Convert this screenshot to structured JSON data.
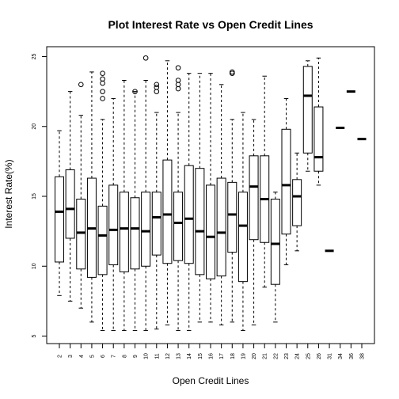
{
  "chart_data": {
    "type": "boxplot",
    "title": "Plot Interest Rate vs Open Credit Lines",
    "xlabel": "Open Credit Lines",
    "ylabel": "Interest Rate(%)",
    "ylim": [
      5,
      25
    ],
    "yticks": [
      5,
      10,
      15,
      20,
      25
    ],
    "grid": false,
    "legend": "none",
    "categories": [
      "2",
      "3",
      "4",
      "5",
      "6",
      "7",
      "8",
      "9",
      "10",
      "11",
      "12",
      "13",
      "14",
      "15",
      "16",
      "17",
      "18",
      "19",
      "20",
      "21",
      "22",
      "23",
      "24",
      "25",
      "26",
      "31",
      "34",
      "36",
      "38"
    ],
    "boxes": [
      {
        "category": "2",
        "whisker_low": 7.9,
        "q1": 10.3,
        "median": 13.9,
        "q3": 16.4,
        "whisker_high": 19.7,
        "outliers": []
      },
      {
        "category": "3",
        "whisker_low": 7.5,
        "q1": 12.0,
        "median": 14.1,
        "q3": 16.9,
        "whisker_high": 22.5,
        "outliers": []
      },
      {
        "category": "4",
        "whisker_low": 7.0,
        "q1": 9.8,
        "median": 12.4,
        "q3": 14.8,
        "whisker_high": 20.8,
        "outliers": [
          23.0
        ]
      },
      {
        "category": "5",
        "whisker_low": 6.0,
        "q1": 9.2,
        "median": 12.7,
        "q3": 16.3,
        "whisker_high": 23.9,
        "outliers": []
      },
      {
        "category": "6",
        "whisker_low": 5.4,
        "q1": 9.4,
        "median": 12.2,
        "q3": 14.3,
        "whisker_high": 20.5,
        "outliers": [
          22.0,
          22.5,
          23.1,
          23.4,
          23.8
        ]
      },
      {
        "category": "7",
        "whisker_low": 5.4,
        "q1": 10.1,
        "median": 12.6,
        "q3": 15.8,
        "whisker_high": 22.0,
        "outliers": []
      },
      {
        "category": "8",
        "whisker_low": 5.4,
        "q1": 9.6,
        "median": 12.7,
        "q3": 15.3,
        "whisker_high": 23.3,
        "outliers": []
      },
      {
        "category": "9",
        "whisker_low": 5.4,
        "q1": 9.8,
        "median": 12.7,
        "q3": 14.9,
        "whisker_high": 22.5,
        "outliers": [
          22.5
        ]
      },
      {
        "category": "10",
        "whisker_low": 5.4,
        "q1": 10.0,
        "median": 12.5,
        "q3": 15.3,
        "whisker_high": 23.3,
        "outliers": [
          24.9
        ]
      },
      {
        "category": "11",
        "whisker_low": 5.5,
        "q1": 10.8,
        "median": 13.5,
        "q3": 15.3,
        "whisker_high": 21.0,
        "outliers": [
          22.5,
          22.8,
          23.0
        ]
      },
      {
        "category": "12",
        "whisker_low": 5.8,
        "q1": 10.2,
        "median": 13.7,
        "q3": 17.6,
        "whisker_high": 24.7,
        "outliers": []
      },
      {
        "category": "13",
        "whisker_low": 5.4,
        "q1": 10.4,
        "median": 13.1,
        "q3": 15.3,
        "whisker_high": 21.0,
        "outliers": [
          22.7,
          23.0,
          23.3,
          24.2
        ]
      },
      {
        "category": "14",
        "whisker_low": 5.4,
        "q1": 10.2,
        "median": 13.4,
        "q3": 17.2,
        "whisker_high": 23.8,
        "outliers": []
      },
      {
        "category": "15",
        "whisker_low": 6.0,
        "q1": 9.4,
        "median": 12.5,
        "q3": 17.0,
        "whisker_high": 23.8,
        "outliers": []
      },
      {
        "category": "16",
        "whisker_low": 6.0,
        "q1": 9.1,
        "median": 12.1,
        "q3": 15.8,
        "whisker_high": 23.8,
        "outliers": []
      },
      {
        "category": "17",
        "whisker_low": 5.8,
        "q1": 9.3,
        "median": 12.4,
        "q3": 16.3,
        "whisker_high": 23.0,
        "outliers": []
      },
      {
        "category": "18",
        "whisker_low": 6.0,
        "q1": 11.0,
        "median": 13.7,
        "q3": 16.0,
        "whisker_high": 20.5,
        "outliers": [
          23.8,
          23.9
        ]
      },
      {
        "category": "19",
        "whisker_low": 5.4,
        "q1": 8.9,
        "median": 12.9,
        "q3": 15.3,
        "whisker_high": 21.0,
        "outliers": []
      },
      {
        "category": "20",
        "whisker_low": 5.8,
        "q1": 11.9,
        "median": 15.7,
        "q3": 17.9,
        "whisker_high": 20.5,
        "outliers": []
      },
      {
        "category": "21",
        "whisker_low": 8.5,
        "q1": 11.7,
        "median": 14.8,
        "q3": 17.9,
        "whisker_high": 23.6,
        "outliers": []
      },
      {
        "category": "22",
        "whisker_low": 6.0,
        "q1": 8.7,
        "median": 11.6,
        "q3": 14.8,
        "whisker_high": 15.3,
        "outliers": []
      },
      {
        "category": "23",
        "whisker_low": 10.1,
        "q1": 12.3,
        "median": 15.8,
        "q3": 19.8,
        "whisker_high": 22.0,
        "outliers": []
      },
      {
        "category": "24",
        "whisker_low": 11.1,
        "q1": 12.9,
        "median": 15.0,
        "q3": 16.2,
        "whisker_high": 18.1,
        "outliers": []
      },
      {
        "category": "25",
        "whisker_low": 16.8,
        "q1": 18.1,
        "median": 22.2,
        "q3": 24.3,
        "whisker_high": 24.7,
        "outliers": []
      },
      {
        "category": "26",
        "whisker_low": 15.8,
        "q1": 16.8,
        "median": 17.8,
        "q3": 21.4,
        "whisker_high": 24.9,
        "outliers": []
      },
      {
        "category": "31",
        "whisker_low": 11.1,
        "q1": 11.1,
        "median": 11.1,
        "q3": 11.1,
        "whisker_high": 11.1,
        "outliers": []
      },
      {
        "category": "34",
        "whisker_low": 19.9,
        "q1": 19.9,
        "median": 19.9,
        "q3": 19.9,
        "whisker_high": 19.9,
        "outliers": []
      },
      {
        "category": "36",
        "whisker_low": 22.5,
        "q1": 22.5,
        "median": 22.5,
        "q3": 22.5,
        "whisker_high": 22.5,
        "outliers": []
      },
      {
        "category": "38",
        "whisker_low": 19.1,
        "q1": 19.1,
        "median": 19.1,
        "q3": 19.1,
        "whisker_high": 19.1,
        "outliers": []
      }
    ]
  }
}
